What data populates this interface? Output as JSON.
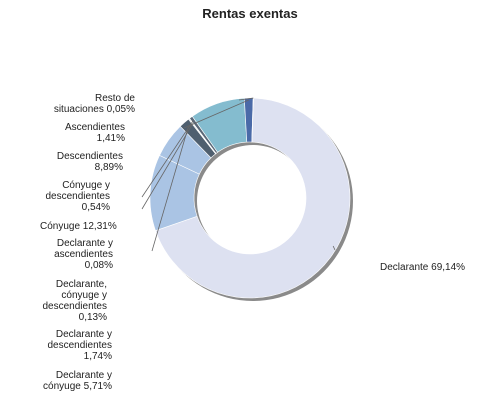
{
  "chart_data": {
    "type": "pie",
    "title": "Rentas exentas",
    "xlabel": "",
    "ylabel": "",
    "legend": "none",
    "donut": true,
    "slices": [
      {
        "label": "Declarante 69,14%",
        "value": 69.14,
        "color": "#dde1f1"
      },
      {
        "label": "Cónyuge 12,31%",
        "value": 12.31,
        "color": "#aac4e4"
      },
      {
        "label": "Declarante y cónyuge 5,71%",
        "value": 5.71,
        "color": "#aac4e4"
      },
      {
        "label": "Declarante y descendientes 1,74%",
        "value": 1.74,
        "color": "#4f5f6f"
      },
      {
        "label": "Declarante, cónyuge y descendientes 0,13%",
        "value": 0.13,
        "color": "#6a7c8c"
      },
      {
        "label": "Declarante y ascendientes 0,08%",
        "value": 0.08,
        "color": "#7a8d9c"
      },
      {
        "label": "Cónyuge y descendientes 0,54%",
        "value": 0.54,
        "color": "#5a6878"
      },
      {
        "label": "Descendientes 8,89%",
        "value": 8.89,
        "color": "#84bccf"
      },
      {
        "label": "Ascendientes 1,41%",
        "value": 1.41,
        "color": "#4a6aa8"
      },
      {
        "label": "Resto de situaciones 0,05%",
        "value": 0.05,
        "color": "#3d4d82"
      }
    ]
  },
  "labels": {
    "resto": [
      "Resto de",
      "situaciones 0,05%"
    ],
    "ascendientes": [
      "Ascendientes",
      "1,41%"
    ],
    "descendientes": [
      "Descendientes",
      "8,89%"
    ],
    "conyuge_desc": [
      "Cónyuge y",
      "descendientes",
      "0,54%"
    ],
    "conyuge": [
      "Cónyuge 12,31%"
    ],
    "decl_asc": [
      "Declarante y",
      "ascendientes",
      "0,08%"
    ],
    "decl_cony_desc": [
      "Declarante,",
      "cónyuge y",
      "descendientes",
      "0,13%"
    ],
    "decl_desc": [
      "Declarante y",
      "descendientes",
      "1,74%"
    ],
    "decl_cony": [
      "Declarante y",
      "cónyuge 5,71%"
    ],
    "declarante": [
      "Declarante 69,14%"
    ]
  }
}
